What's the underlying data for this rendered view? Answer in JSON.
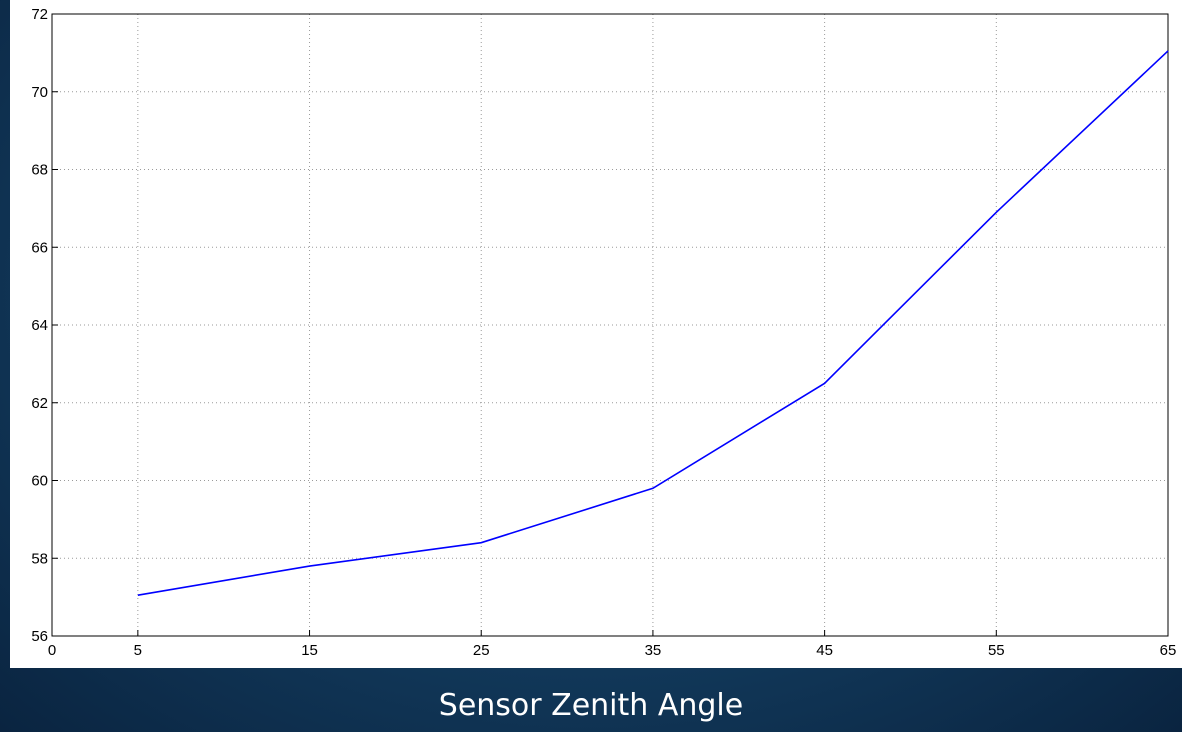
{
  "chart_data": {
    "type": "line",
    "x_label": "Sensor Zenith Angle",
    "x": [
      5,
      15,
      25,
      35,
      45,
      55,
      65
    ],
    "series": [
      {
        "color": "#0000ff",
        "values": [
          57.05,
          57.8,
          58.4,
          59.8,
          62.5,
          66.9,
          71.05
        ]
      }
    ],
    "xlim": [
      0,
      65
    ],
    "xticks": [
      0,
      5,
      15,
      25,
      35,
      45,
      55,
      65
    ],
    "ylim": [
      56,
      72
    ],
    "yticks": [
      56,
      58,
      60,
      62,
      64,
      66,
      68,
      70,
      72
    ],
    "grid": true
  }
}
